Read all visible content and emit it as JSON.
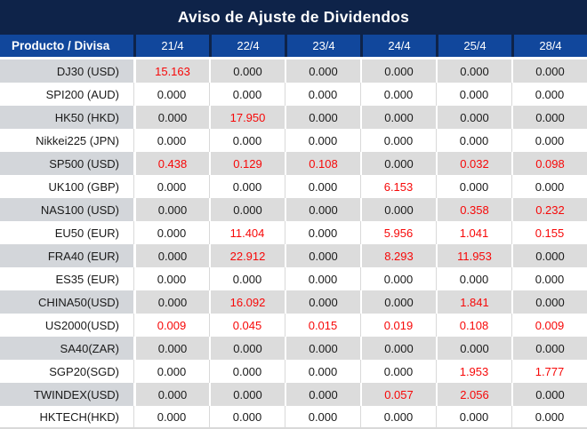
{
  "title": "Aviso de Ajuste de Dividendos",
  "header": {
    "product_label": "Producto / Divisa",
    "dates": [
      "21/4",
      "22/4",
      "23/4",
      "24/4",
      "25/4",
      "28/4"
    ]
  },
  "zero_value": "0.000",
  "rows": [
    {
      "product": "DJ30 (USD)",
      "values": [
        "15.163",
        "0.000",
        "0.000",
        "0.000",
        "0.000",
        "0.000"
      ]
    },
    {
      "product": "SPI200 (AUD)",
      "values": [
        "0.000",
        "0.000",
        "0.000",
        "0.000",
        "0.000",
        "0.000"
      ]
    },
    {
      "product": "HK50 (HKD)",
      "values": [
        "0.000",
        "17.950",
        "0.000",
        "0.000",
        "0.000",
        "0.000"
      ]
    },
    {
      "product": "Nikkei225 (JPN)",
      "values": [
        "0.000",
        "0.000",
        "0.000",
        "0.000",
        "0.000",
        "0.000"
      ]
    },
    {
      "product": "SP500 (USD)",
      "values": [
        "0.438",
        "0.129",
        "0.108",
        "0.000",
        "0.032",
        "0.098"
      ]
    },
    {
      "product": "UK100 (GBP)",
      "values": [
        "0.000",
        "0.000",
        "0.000",
        "6.153",
        "0.000",
        "0.000"
      ]
    },
    {
      "product": "NAS100 (USD)",
      "values": [
        "0.000",
        "0.000",
        "0.000",
        "0.000",
        "0.358",
        "0.232"
      ]
    },
    {
      "product": "EU50 (EUR)",
      "values": [
        "0.000",
        "11.404",
        "0.000",
        "5.956",
        "1.041",
        "0.155"
      ]
    },
    {
      "product": "FRA40 (EUR)",
      "values": [
        "0.000",
        "22.912",
        "0.000",
        "8.293",
        "11.953",
        "0.000"
      ]
    },
    {
      "product": "ES35 (EUR)",
      "values": [
        "0.000",
        "0.000",
        "0.000",
        "0.000",
        "0.000",
        "0.000"
      ]
    },
    {
      "product": "CHINA50(USD)",
      "values": [
        "0.000",
        "16.092",
        "0.000",
        "0.000",
        "1.841",
        "0.000"
      ]
    },
    {
      "product": "US2000(USD)",
      "values": [
        "0.009",
        "0.045",
        "0.015",
        "0.019",
        "0.108",
        "0.009"
      ]
    },
    {
      "product": "SA40(ZAR)",
      "values": [
        "0.000",
        "0.000",
        "0.000",
        "0.000",
        "0.000",
        "0.000"
      ]
    },
    {
      "product": "SGP20(SGD)",
      "values": [
        "0.000",
        "0.000",
        "0.000",
        "0.000",
        "1.953",
        "1.777"
      ]
    },
    {
      "product": "TWINDEX(USD)",
      "values": [
        "0.000",
        "0.000",
        "0.000",
        "0.057",
        "2.056",
        "0.000"
      ]
    },
    {
      "product": "HKTECH(HKD)",
      "values": [
        "0.000",
        "0.000",
        "0.000",
        "0.000",
        "0.000",
        "0.000"
      ]
    }
  ],
  "colors": {
    "title_bg": "#0e2349",
    "header_bg": "#11479c",
    "stripe_bg": "#dcdcdc",
    "stripe_label_bg": "#d3d6da",
    "grid_line": "#d9d9d9",
    "value_text": "#1a1a1a",
    "highlight_value": "#f70808"
  }
}
